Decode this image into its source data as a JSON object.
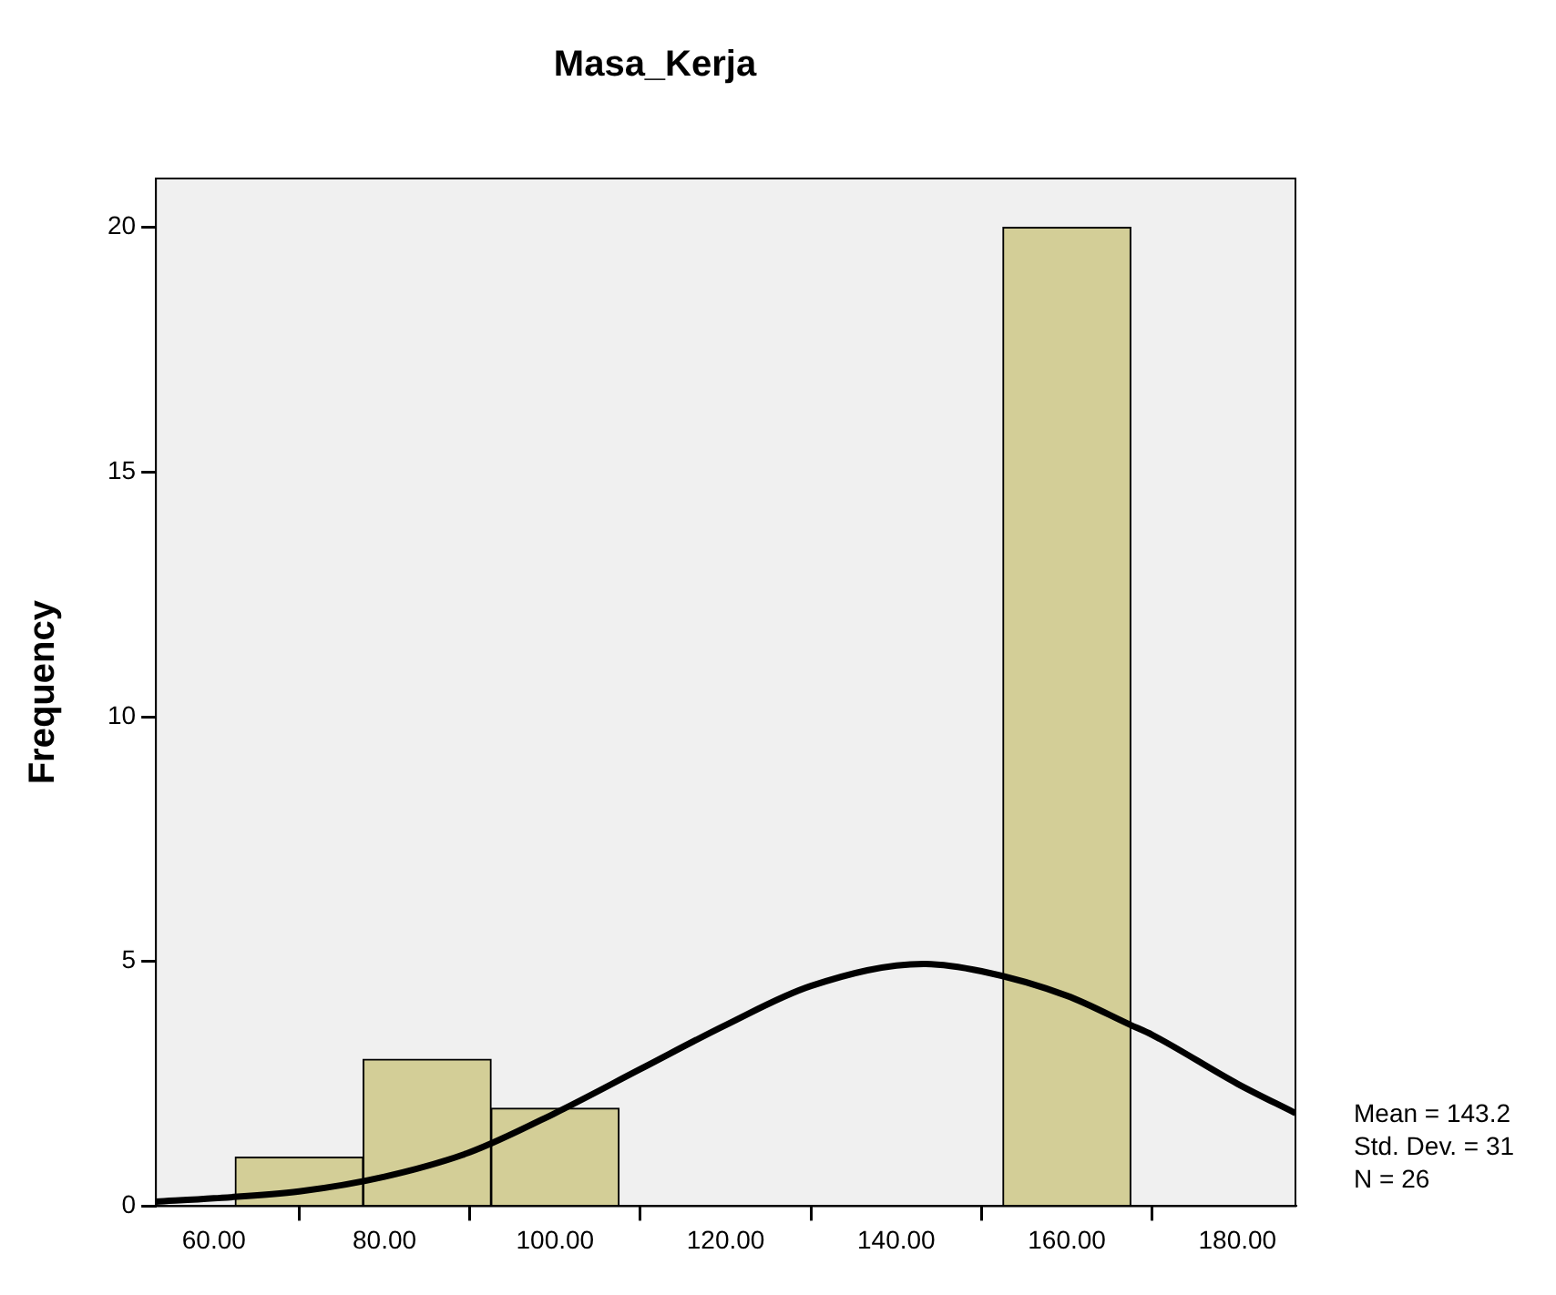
{
  "chart_data": {
    "type": "histogram",
    "title": "Masa_Kerja",
    "ylabel": "Frequency",
    "bins": [
      62.5,
      77.5,
      92.5,
      107.5,
      122.5,
      137.5,
      152.5,
      167.5
    ],
    "series": [
      {
        "color": "#d3ce97",
        "values": [
          1,
          3,
          2,
          0,
          0,
          0,
          20
        ]
      },
      {
        "type": "line",
        "color": "#000000",
        "x": [
          53.2,
          60,
          70,
          80,
          90,
          100,
          110,
          120,
          130,
          143.2,
          150,
          160,
          167.5,
          170,
          180,
          186.8
        ],
        "values": [
          0.09,
          0.16,
          0.3,
          0.6,
          1.1,
          1.9,
          2.8,
          3.7,
          4.5,
          4.95,
          4.8,
          4.3,
          3.7,
          3.5,
          2.5,
          1.9
        ]
      }
    ],
    "xlim": [
      53.2,
      186.8
    ],
    "xticks": [
      {
        "value": 60,
        "label": "60.00"
      },
      {
        "value": 80,
        "label": "80.00"
      },
      {
        "value": 100,
        "label": "100.00"
      },
      {
        "value": 120,
        "label": "120.00"
      },
      {
        "value": 140,
        "label": "140.00"
      },
      {
        "value": 160,
        "label": "160.00"
      },
      {
        "value": 180,
        "label": "180.00"
      }
    ],
    "ylim": [
      0,
      21
    ],
    "yticks": [
      0,
      5,
      10,
      15,
      20
    ],
    "grid": false,
    "legend": false,
    "marker": "none",
    "line_style": "solid",
    "annotations": [
      "Mean = 143.2",
      "Std. Dev. = 31",
      "N = 26"
    ]
  }
}
